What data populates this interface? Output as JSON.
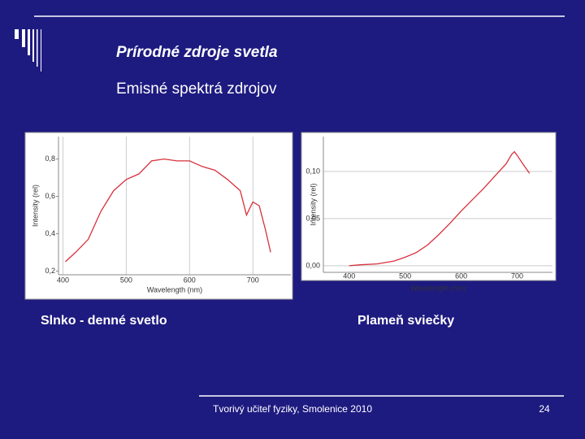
{
  "slide": {
    "title": "Prírodné zdroje svetla",
    "subtitle": "Emisné spektrá zdrojov",
    "captions": [
      "Slnko - denné svetlo",
      "Plameň sviečky"
    ],
    "footer": "Tvorivý učiteľ fyziky, Smolenice 2010",
    "page_number": "24"
  },
  "chart_data": [
    {
      "type": "line",
      "x_label": "Wavelength (nm)",
      "y_label": "Intensity (rel)",
      "x": [
        404,
        420,
        440,
        460,
        480,
        500,
        520,
        540,
        560,
        580,
        600,
        620,
        640,
        660,
        680,
        690,
        700,
        710,
        720,
        728
      ],
      "values": [
        0.25,
        0.3,
        0.37,
        0.52,
        0.63,
        0.69,
        0.72,
        0.79,
        0.8,
        0.79,
        0.79,
        0.76,
        0.74,
        0.69,
        0.63,
        0.5,
        0.57,
        0.55,
        0.42,
        0.3
      ],
      "color": "#d8303c",
      "xlim": [
        393,
        760
      ],
      "ylim": [
        0.18,
        0.92
      ],
      "xticks": [
        400,
        500,
        600,
        700
      ],
      "yticks": [
        {
          "value": 0.2,
          "label": "0,2"
        },
        {
          "value": 0.4,
          "label": "0,4"
        },
        {
          "value": 0.6,
          "label": "0,6"
        },
        {
          "value": 0.8,
          "label": "0,8"
        }
      ],
      "grid": "x"
    },
    {
      "type": "line",
      "x_label": "Wavelength (nm)",
      "y_label": "Intensity (rel)",
      "x": [
        400,
        420,
        450,
        480,
        500,
        520,
        540,
        560,
        580,
        600,
        620,
        640,
        660,
        680,
        690,
        695,
        700,
        710,
        722
      ],
      "values": [
        0.0,
        0.001,
        0.002,
        0.005,
        0.009,
        0.014,
        0.022,
        0.033,
        0.045,
        0.058,
        0.07,
        0.082,
        0.095,
        0.108,
        0.118,
        0.121,
        0.117,
        0.108,
        0.098
      ],
      "color": "#d8303c",
      "xlim": [
        354,
        763
      ],
      "ylim": [
        -0.007,
        0.137
      ],
      "xticks": [
        400,
        500,
        600,
        700
      ],
      "yticks": [
        {
          "value": 0.0,
          "label": "0,00"
        },
        {
          "value": 0.05,
          "label": "0,05"
        },
        {
          "value": 0.1,
          "label": "0,10"
        }
      ],
      "grid": "y"
    }
  ]
}
